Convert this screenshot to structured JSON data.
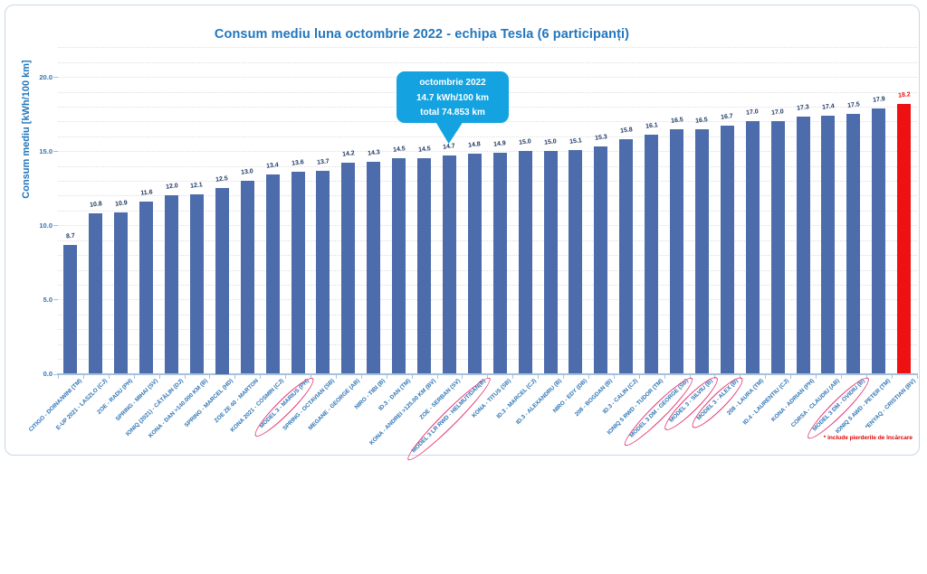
{
  "callout": {
    "line1": "octombrie 2022",
    "line2": "14.7 kWh/100 km",
    "line3": "total  74.853 km",
    "points_to_category": "ZOE - SERBAN (SV)"
  },
  "footnote": {
    "text": "* include pierderile de încărcare"
  },
  "colors": {
    "bar_blue": "#4c6cab",
    "bar_red": "#ee1111",
    "title_blue": "#2176bd",
    "axis_label_blue": "#2e75b6",
    "value_label_navy": "#1f3864",
    "callout_cyan": "#14a3e0",
    "circle_annotation_pink": "#e73170",
    "footnote_red": "#e00000",
    "gridline_gray": "#dedede",
    "axis_line_blue": "#a6c1dd"
  },
  "chart_data": {
    "type": "bar",
    "title": "Consum mediu luna octombrie 2022 - echipa Tesla (6 participanți)",
    "xlabel": "",
    "ylabel": "Consum mediu [kWh/100 km]",
    "ylim": [
      0,
      22
    ],
    "ytick_labels": [
      "0.0",
      "5.0",
      "10.0",
      "15.0",
      "20.0"
    ],
    "grid": "horizontal dotted, every 1.0 unit",
    "legend": "none",
    "categories": [
      "CITIGO - DOINA/WINI (TM)",
      "E-UP 2021 - LASZLO (CJ)",
      "ZOE - RADU (PH)",
      "SPRING - MIHAI (SV)",
      "IONIQ (2021) - CĂTĂLIN (DJ)",
      "KONA - DAN >140.000 KM (B)",
      "SPRING - MARCEL (HD)",
      "ZOE ZE 40 - MARTON",
      "KONA 2021 - COSMIN (CJ)",
      "MODEL 3 - MARIUS (PH)",
      "SPRING - OCTAVIAN (SB)",
      "MEGANE - GEORGE (AB)",
      "NIRO - TIBI (B)",
      "ID.3 - DAN (TM)",
      "KONA - ANDREI >125.00 KM (BV)",
      "ZOE - SERBAN (SV)",
      "MODEL 3 LR RWD - HELMUT/DAN(B)",
      "KONA - TITUS (SB)",
      "ID.3 - MARCEL (CJ)",
      "ID.3 - ALEXANDRU (B)",
      "NIRO - EDY (DB)",
      "208 - BOGDAN (B)",
      "ID.3 - CALIN (CJ)",
      "IONIQ 5 RWD - TUDOR (TM)",
      "MODEL 3 DM - GEORGE (SB)",
      "MODEL 3 - SILVIU (B)",
      "MODEL 3 - ALEX (B)",
      "208 - LAURA (TM)",
      "ID.4 - LAURENTIU (CJ)",
      "KONA - ADRIAN (PH)",
      "CORSA - CLAUDIU (AB)",
      "MODEL 3 DM - OVIDIU (B)",
      "IONIQ 5 AWD - PETER (TM)",
      "*ENYAQ - CRISTIAN (BV)"
    ],
    "values": [
      8.7,
      10.8,
      10.9,
      11.6,
      12.0,
      12.1,
      12.5,
      13.0,
      13.4,
      13.6,
      13.7,
      14.2,
      14.3,
      14.5,
      14.5,
      14.7,
      14.8,
      14.9,
      15.0,
      15.0,
      15.1,
      15.3,
      15.8,
      16.1,
      16.5,
      16.5,
      16.7,
      17.0,
      17.0,
      17.3,
      17.4,
      17.5,
      17.9,
      18.2
    ],
    "circled_indices": [
      9,
      16,
      24,
      25,
      26,
      31
    ],
    "red_highlight_index": 33
  }
}
